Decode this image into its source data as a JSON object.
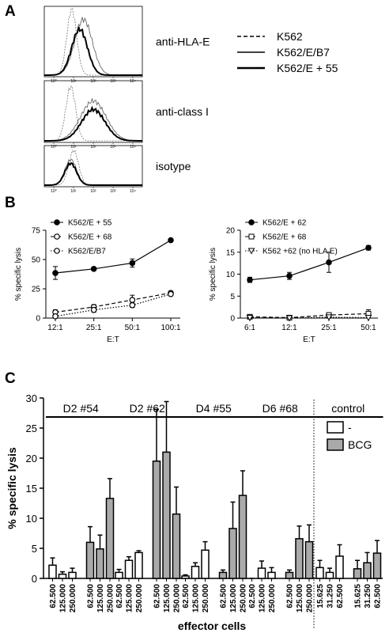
{
  "chart_data": [
    {
      "type": "histogram-overlay",
      "panel": "A",
      "plots": [
        "anti-HLA-E",
        "anti-class I",
        "isotype"
      ],
      "xtick_labels": [
        "10⁰",
        "10¹",
        "10²",
        "10³",
        "10⁴"
      ],
      "series": [
        {
          "name": "K562",
          "color": "#000",
          "style": "dashed"
        },
        {
          "name": "K562/E/B7",
          "color": "#000",
          "style": "thin"
        },
        {
          "name": "K562/E + 55",
          "color": "#000",
          "style": "thick"
        }
      ]
    },
    {
      "type": "line",
      "panel": "B",
      "ylabel": "% specific lysis",
      "xlabel": "E:T",
      "categories": [
        "12:1",
        "25:1",
        "50:1",
        "100:1"
      ],
      "ylim": [
        0,
        75
      ],
      "yticks": [
        0,
        25,
        50,
        75
      ],
      "series": [
        {
          "name": "K562/E + 55",
          "color": "#000",
          "marker": "circle",
          "filled": true,
          "dash": "solid",
          "values": [
            38.5,
            42,
            47,
            66.5
          ],
          "errors": [
            5.5,
            1,
            3.5,
            0.5
          ]
        },
        {
          "name": "K562/E + 68",
          "color": "#000",
          "marker": "circle",
          "filled": false,
          "dash": "dashed",
          "values": [
            5,
            9.5,
            15.5,
            21.5
          ],
          "errors": [
            2,
            2,
            4,
            1
          ]
        },
        {
          "name": "K562/E/B7",
          "color": "#000",
          "marker": "circle",
          "filled": false,
          "dash": "dotted",
          "values": [
            1.5,
            7,
            11,
            20.5
          ],
          "errors": [
            1.5,
            2,
            2,
            1.5
          ]
        }
      ]
    },
    {
      "type": "line",
      "ylabel": "% specific lysis",
      "xlabel": "E:T",
      "categories": [
        "6:1",
        "12:1",
        "25:1",
        "50:1"
      ],
      "ylim": [
        0,
        20
      ],
      "yticks": [
        0,
        5,
        10,
        15,
        20
      ],
      "series": [
        {
          "name": "K562/E + 62",
          "color": "#000",
          "marker": "circle",
          "filled": true,
          "dash": "solid",
          "values": [
            8.7,
            9.6,
            12.7,
            16
          ],
          "errors": [
            0.6,
            0.8,
            2.3,
            0.5
          ]
        },
        {
          "name": "K562/E + 68",
          "color": "#000",
          "marker": "square",
          "filled": false,
          "dash": "dashed",
          "values": [
            0.3,
            0.1,
            0.7,
            1.0
          ],
          "errors": [
            0.2,
            0.1,
            0.4,
            0.9
          ]
        },
        {
          "name": "K562 +62 (no HLA E)",
          "color": "#000",
          "marker": "triangle",
          "filled": false,
          "dash": "dotted",
          "values": [
            0.1,
            0,
            0.2,
            0.1
          ],
          "errors": [
            0.1,
            0,
            0.1,
            0.1
          ]
        }
      ]
    },
    {
      "type": "grouped-bar",
      "panel": "C",
      "ylabel": "% specific lysis",
      "xlabel": "effector cells",
      "ylim": [
        0,
        30
      ],
      "yticks": [
        0,
        5,
        10,
        15,
        20,
        25,
        30
      ],
      "groups": [
        {
          "name": "D2 #54",
          "categories": [
            "62.500",
            "125.000",
            "250.000",
            "62.500",
            "125.000",
            "250.000"
          ]
        },
        {
          "name": "D2 #62",
          "categories": [
            "62.500",
            "125.000",
            "250.000",
            "62.500",
            "125.000",
            "250.000"
          ]
        },
        {
          "name": "D4 #55",
          "categories": [
            "62.500",
            "125.000",
            "250.000",
            "62.500",
            "125.000",
            "250.000"
          ]
        },
        {
          "name": "D6 #68",
          "categories": [
            "62.500",
            "125.000",
            "250.000",
            "62.500",
            "125.000",
            "250.000"
          ]
        },
        {
          "name": "control",
          "categories": [
            "15.625",
            "31.250",
            "62.500",
            "15.625",
            "31.250",
            "62.500"
          ]
        }
      ],
      "series": [
        {
          "name": "-",
          "color": "#ffffff",
          "values": [
            2.2,
            0.7,
            1.0,
            null,
            null,
            null,
            1.0,
            3.0,
            4.3,
            null,
            null,
            null,
            0.4,
            2.0,
            4.7,
            null,
            null,
            null,
            0,
            1.7,
            1.0,
            null,
            null,
            null,
            1.8,
            1.0,
            3.7,
            null,
            null,
            null
          ],
          "errors": [
            1.2,
            0.4,
            0.7,
            null,
            null,
            null,
            0.5,
            0.6,
            0.3,
            null,
            null,
            null,
            0.2,
            0.6,
            1.4,
            null,
            null,
            null,
            0,
            1.2,
            0.8,
            null,
            null,
            null,
            1.2,
            0.7,
            1.9,
            null,
            null,
            null
          ]
        },
        {
          "name": "BCG",
          "color": "#aaaaaa",
          "values": [
            null,
            null,
            null,
            6.0,
            4.9,
            13.3,
            null,
            null,
            null,
            19.5,
            21.0,
            10.7,
            null,
            null,
            null,
            1.0,
            8.3,
            13.8,
            null,
            null,
            null,
            1.0,
            6.6,
            6.1,
            null,
            null,
            null,
            1.6,
            2.6,
            4.2
          ],
          "errors": [
            null,
            null,
            null,
            2.6,
            2.3,
            3.3,
            null,
            null,
            null,
            8.6,
            8.4,
            4.5,
            null,
            null,
            null,
            0.4,
            4.4,
            4.1,
            null,
            null,
            null,
            0.4,
            2.1,
            2.8,
            null,
            null,
            null,
            1.4,
            1.7,
            2.1
          ]
        }
      ]
    }
  ]
}
